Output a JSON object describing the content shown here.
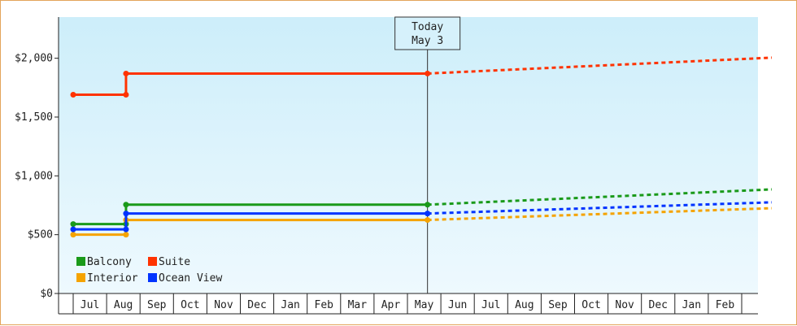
{
  "chart_data": {
    "type": "line",
    "today_marker": {
      "line1": "Today",
      "line2": "May 3"
    },
    "y_ticks": [
      {
        "value": 0,
        "label": "$0"
      },
      {
        "value": 500,
        "label": "$500"
      },
      {
        "value": 1000,
        "label": "$1,000"
      },
      {
        "value": 1500,
        "label": "$1,500"
      },
      {
        "value": 2000,
        "label": "$2,000"
      }
    ],
    "ylim": [
      0,
      2350
    ],
    "months": [
      "Jul",
      "Aug",
      "Sep",
      "Oct",
      "Nov",
      "Dec",
      "Jan",
      "Feb",
      "Mar",
      "Apr",
      "May",
      "Jun",
      "Jul",
      "Aug",
      "Sep",
      "Oct",
      "Nov",
      "Dec",
      "Jan",
      "Feb"
    ],
    "series": [
      {
        "name": "Balcony",
        "color": "#1a9a1a",
        "historical": [
          [
            0,
            590
          ],
          [
            1.58,
            590
          ],
          [
            1.58,
            755
          ],
          [
            10.6,
            755
          ]
        ],
        "markers": [
          [
            0,
            590
          ],
          [
            1.58,
            590
          ],
          [
            1.58,
            755
          ],
          [
            10.6,
            755
          ]
        ],
        "forecast": [
          [
            10.6,
            755
          ],
          [
            20.9,
            885
          ]
        ]
      },
      {
        "name": "Suite",
        "color": "#ff3300",
        "historical": [
          [
            0,
            1690
          ],
          [
            1.58,
            1690
          ],
          [
            1.58,
            1870
          ],
          [
            10.6,
            1870
          ]
        ],
        "markers": [
          [
            0,
            1690
          ],
          [
            1.58,
            1690
          ],
          [
            1.58,
            1870
          ],
          [
            10.6,
            1870
          ]
        ],
        "forecast": [
          [
            10.6,
            1870
          ],
          [
            20.9,
            2005
          ]
        ]
      },
      {
        "name": "Interior",
        "color": "#f5a300",
        "historical": [
          [
            0,
            500
          ],
          [
            1.58,
            500
          ],
          [
            1.58,
            625
          ],
          [
            10.6,
            625
          ]
        ],
        "markers": [
          [
            0,
            500
          ],
          [
            1.58,
            500
          ],
          [
            1.58,
            625
          ],
          [
            10.6,
            625
          ]
        ],
        "forecast": [
          [
            10.6,
            625
          ],
          [
            20.9,
            725
          ]
        ]
      },
      {
        "name": "Ocean View",
        "color": "#0033ff",
        "historical": [
          [
            0,
            545
          ],
          [
            1.58,
            545
          ],
          [
            1.58,
            680
          ],
          [
            10.6,
            680
          ]
        ],
        "markers": [
          [
            0,
            545
          ],
          [
            1.58,
            545
          ],
          [
            1.58,
            680
          ],
          [
            10.6,
            680
          ]
        ],
        "forecast": [
          [
            10.6,
            680
          ],
          [
            20.9,
            775
          ]
        ]
      }
    ],
    "legend": [
      {
        "label": "Balcony",
        "color": "#1a9a1a"
      },
      {
        "label": "Suite",
        "color": "#ff3300"
      },
      {
        "label": "Interior",
        "color": "#f5a300"
      },
      {
        "label": "Ocean View",
        "color": "#0033ff"
      }
    ]
  }
}
